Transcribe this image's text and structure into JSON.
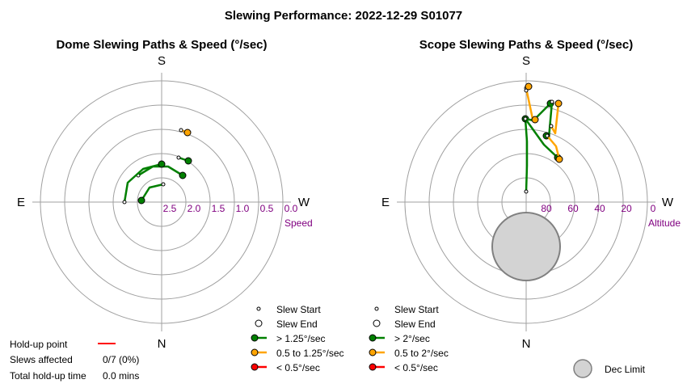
{
  "title": "Slewing Performance: 2022-12-29 S01077",
  "chart_data": [
    {
      "type": "polar-paths",
      "title": "Dome Slewing Paths & Speed (°/sec)",
      "cardinals": {
        "top": "S",
        "bottom": "N",
        "left": "E",
        "right": "W"
      },
      "radial_ticks": [
        "2.5",
        "2.0",
        "1.5",
        "1.0",
        "0.5",
        "0.0"
      ],
      "radial_label": "Speed",
      "colors": {
        "fast": "#008000",
        "medium": "#ffa500",
        "slow": "#ff0000"
      },
      "legend": [
        {
          "label": "Slew Start",
          "kind": "start"
        },
        {
          "label": "Slew End",
          "kind": "end"
        },
        {
          "label": "> 1.25°/sec",
          "kind": "fast"
        },
        {
          "label": "0.5 to 1.25°/sec",
          "kind": "medium"
        },
        {
          "label": "< 0.5°/sec",
          "kind": "slow"
        }
      ],
      "paths": [
        {
          "speed": "fast",
          "pts": [
            [
              -29,
              -33
            ],
            [
              -11,
              -44
            ],
            [
              8,
              -44
            ],
            [
              26,
              -33
            ]
          ]
        },
        {
          "speed": "fast",
          "pts": [
            [
              -46,
              0
            ],
            [
              -42,
              -24
            ],
            [
              -23,
              -41
            ],
            [
              0,
              -47
            ]
          ]
        },
        {
          "speed": "fast",
          "pts": [
            [
              2,
              -22
            ],
            [
              -15,
              -18
            ],
            [
              -25,
              -2
            ]
          ]
        },
        {
          "speed": "fast",
          "pts": [
            [
              21,
              -55
            ],
            [
              33,
              -51
            ]
          ]
        },
        {
          "speed": "medium",
          "pts": [
            [
              24,
              -89
            ],
            [
              32,
              -86
            ]
          ]
        }
      ]
    },
    {
      "type": "polar-paths",
      "title": "Scope Slewing Paths & Speed (°/sec)",
      "cardinals": {
        "top": "S",
        "bottom": "N",
        "left": "E",
        "right": "W"
      },
      "radial_ticks": [
        "80",
        "60",
        "40",
        "20",
        "0"
      ],
      "radial_label": "Altitude",
      "colors": {
        "fast": "#008000",
        "medium": "#ffa500",
        "slow": "#ff0000"
      },
      "legend": [
        {
          "label": "Slew Start",
          "kind": "start"
        },
        {
          "label": "Slew End",
          "kind": "end"
        },
        {
          "label": "> 2°/sec",
          "kind": "fast"
        },
        {
          "label": "0.5 to 2°/sec",
          "kind": "medium"
        },
        {
          "label": "< 0.5°/sec",
          "kind": "slow"
        }
      ],
      "dec_limit": {
        "label": "Dec Limit"
      },
      "paths": [
        {
          "speed": "fast",
          "pts": [
            [
              0,
              -13
            ],
            [
              1,
              -45
            ],
            [
              1,
              -75
            ],
            [
              -1,
              -103
            ]
          ]
        },
        {
          "speed": "fast",
          "pts": [
            [
              -1,
              -103
            ],
            [
              22,
              -71
            ],
            [
              39,
              -55
            ]
          ]
        },
        {
          "speed": "fast",
          "pts": [
            [
              -1,
              -103
            ],
            [
              9,
              -101
            ],
            [
              30,
              -122
            ]
          ]
        },
        {
          "speed": "fast",
          "pts": [
            [
              32,
              -124
            ],
            [
              28,
              -79
            ],
            [
              25,
              -82
            ]
          ]
        },
        {
          "speed": "medium",
          "pts": [
            [
              0,
              -141
            ],
            [
              8,
              -103
            ],
            [
              11,
              -102
            ]
          ]
        },
        {
          "speed": "medium",
          "pts": [
            [
              31,
              -94
            ],
            [
              36,
              -85
            ],
            [
              40,
              -122
            ]
          ]
        },
        {
          "speed": "medium",
          "pts": [
            [
              26,
              -82
            ],
            [
              37,
              -69
            ],
            [
              41,
              -53
            ]
          ]
        },
        {
          "speed": "medium",
          "pts": [
            [
              0,
              -138
            ],
            [
              3,
              -143
            ]
          ]
        }
      ]
    }
  ],
  "holdup": {
    "point_label": "Hold-up point",
    "point_color": "#ff0000",
    "slews_label": "Slews affected",
    "slews_value": "0/7 (0%)",
    "total_label": "Total hold-up time",
    "total_value": "0.0 mins"
  }
}
